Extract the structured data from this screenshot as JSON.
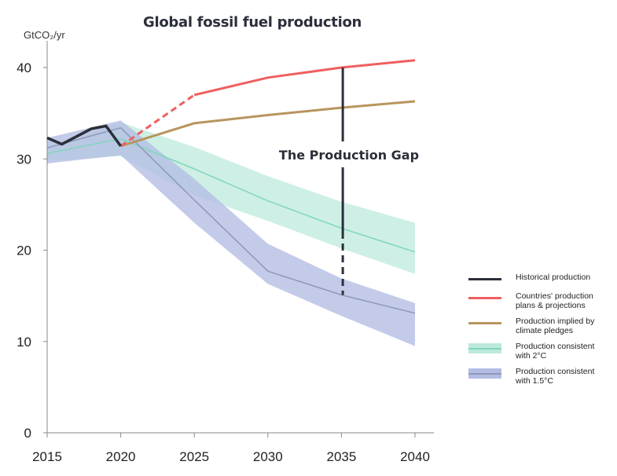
{
  "chart_data": {
    "type": "line",
    "title": "Global fossil fuel production",
    "ylabel": "GtCO₂/yr",
    "xlabel": "",
    "xlim": [
      2015,
      2041
    ],
    "ylim": [
      0,
      42
    ],
    "x_ticks": [
      2015,
      2020,
      2025,
      2030,
      2035,
      2040
    ],
    "y_ticks": [
      0,
      10,
      20,
      30,
      40
    ],
    "series": [
      {
        "name": "Historical production",
        "color": "#2b2f3a",
        "style": "solid",
        "x": [
          2015,
          2016,
          2018,
          2019,
          2020
        ],
        "y": [
          32.3,
          31.6,
          33.3,
          33.6,
          31.4
        ]
      },
      {
        "name": "Countries' production plans & projections",
        "color": "#ef5f5f",
        "style": "dashed-then-solid",
        "x": [
          2020,
          2025,
          2030,
          2035,
          2040
        ],
        "y": [
          31.4,
          37.0,
          38.9,
          40.0,
          40.8
        ]
      },
      {
        "name": "Production implied by climate pledges",
        "color": "#b8955e",
        "style": "solid",
        "x": [
          2020,
          2025,
          2030,
          2035,
          2040
        ],
        "y": [
          31.4,
          33.9,
          34.8,
          35.6,
          36.3
        ]
      },
      {
        "name": "Production consistent with 2°C",
        "color": "#7fd6bc",
        "band_color": "#bde9dc",
        "style": "median-with-range",
        "x": [
          2015,
          2020,
          2025,
          2030,
          2035,
          2040
        ],
        "y": [
          30.6,
          32.2,
          28.9,
          25.4,
          22.4,
          19.8
        ],
        "y_low": [
          29.8,
          30.3,
          26.0,
          23.2,
          20.2,
          17.4
        ],
        "y_high": [
          31.5,
          34.0,
          31.3,
          28.1,
          25.3,
          23.0
        ]
      },
      {
        "name": "Production consistent with 1.5°C",
        "color": "#8f98b8",
        "band_color": "#b3bce3",
        "style": "median-with-range",
        "x": [
          2015,
          2020,
          2025,
          2030,
          2035,
          2040
        ],
        "y": [
          31.2,
          33.4,
          25.5,
          17.7,
          15.1,
          13.1
        ],
        "y_low": [
          29.5,
          30.4,
          23.0,
          16.3,
          12.8,
          9.5
        ],
        "y_high": [
          32.3,
          34.2,
          27.8,
          20.7,
          16.9,
          14.2
        ]
      }
    ],
    "annotations": [
      {
        "text": "The Production Gap",
        "x": 2036,
        "y_top": 40.0,
        "y_bottom": 15.1
      }
    ],
    "legend": {
      "position": "right",
      "items": [
        {
          "label": "Historical production",
          "kind": "line",
          "color": "#2b2f3a"
        },
        {
          "label": "Countries' production\nplans & projections",
          "kind": "line",
          "color": "#ef5f5f"
        },
        {
          "label": "Production implied by\nclimate pledges",
          "kind": "line",
          "color": "#b8955e"
        },
        {
          "label": "Production consistent\nwith 2°C",
          "kind": "band",
          "color": "#7fd6bc",
          "band_color": "#bde9dc"
        },
        {
          "label": "Production consistent\nwith 1.5°C",
          "kind": "band",
          "color": "#8f98b8",
          "band_color": "#b3bce3"
        }
      ]
    },
    "grid": false
  }
}
